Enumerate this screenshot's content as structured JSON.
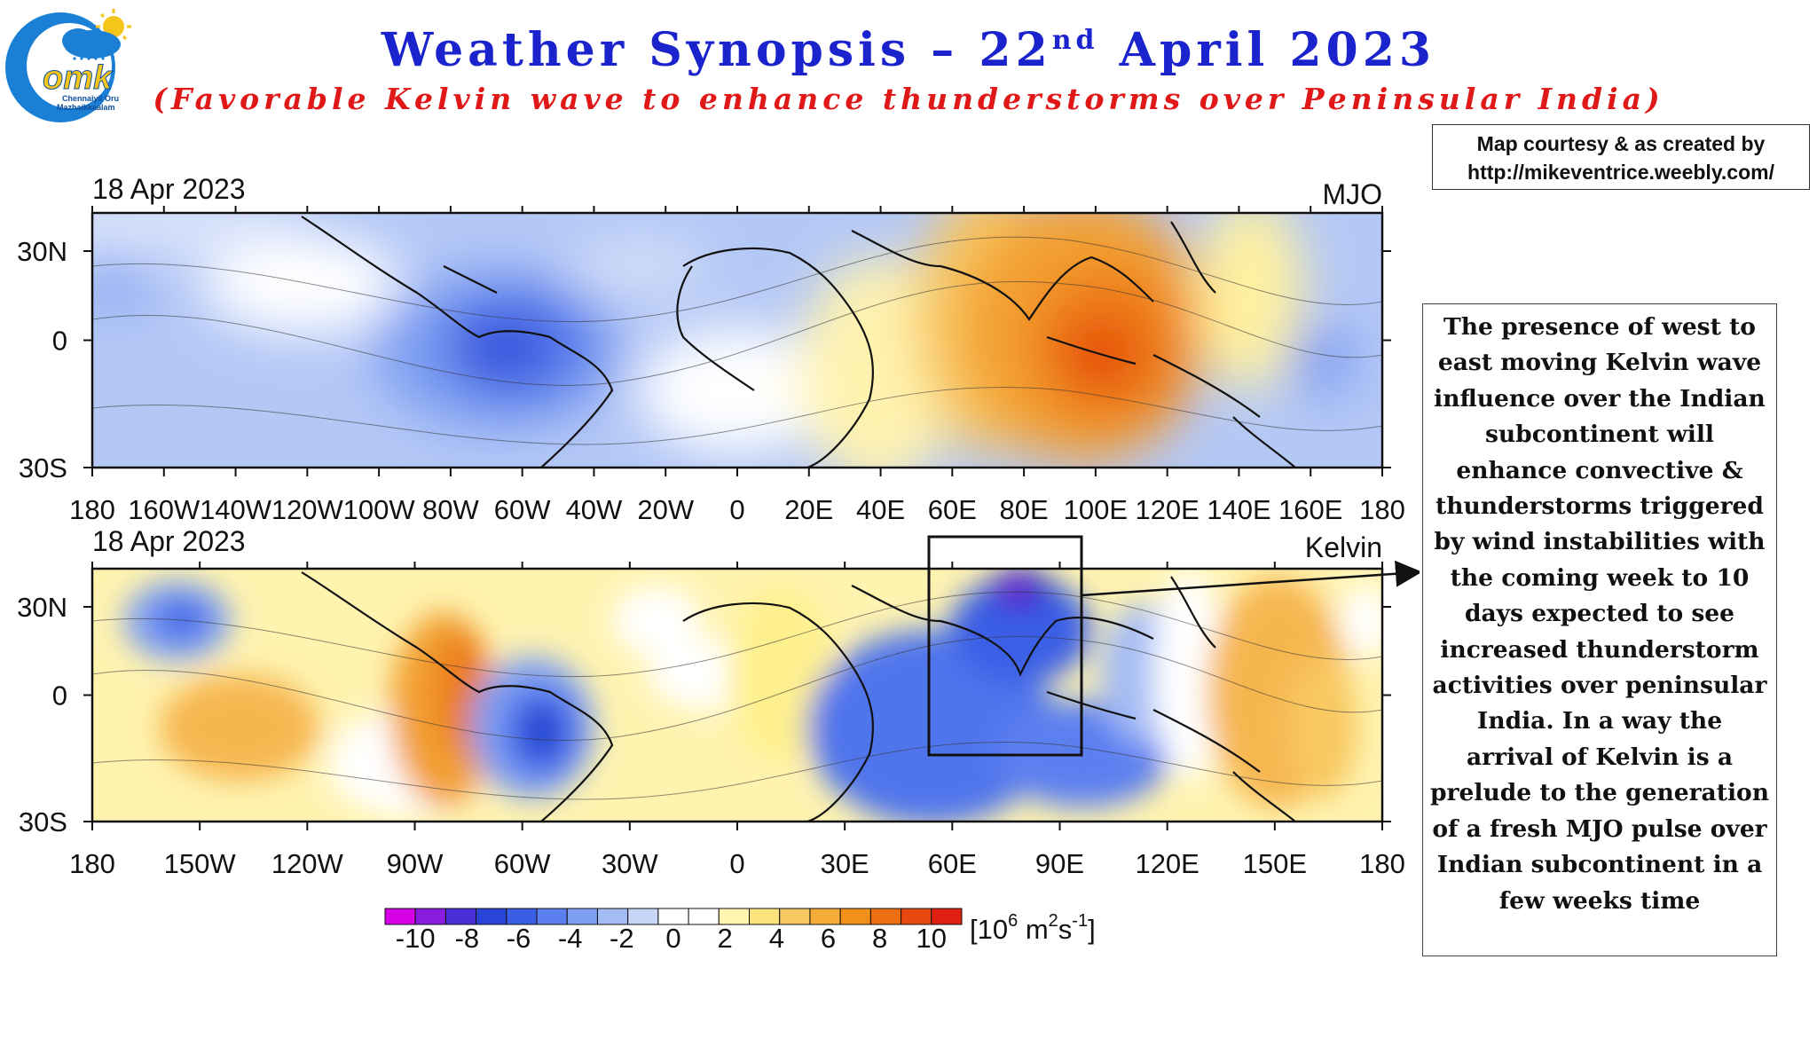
{
  "header": {
    "title_main": "Weather Synopsis – 22",
    "title_sup": "nd",
    "title_rest": " April 2023",
    "subtitle": "(Favorable Kelvin wave to enhance thunderstorms over Peninsular India)"
  },
  "logo": {
    "mark": "omk",
    "line1": "Chennaiyil Oru",
    "line2": "Mazhaikkaalam"
  },
  "courtesy": {
    "line1": "Map courtesy & as created by",
    "line2": "http://mikeventrice.weebly.com/"
  },
  "note": "The presence of west to east moving Kelvin wave influence over the Indian subcontinent will enhance convective & thunderstorms triggered by wind instabilities with the coming week to 10 days expected to see increased thunderstorm activities over peninsular India. In a way the arrival of Kelvin is a prelude to the generation of a fresh MJO pulse over Indian subcontinent in a few weeks time",
  "map_top": {
    "date": "18 Apr 2023",
    "field": "MJO",
    "lat_ticks": [
      "30N",
      "0",
      "30S"
    ],
    "lon_ticks": [
      "180",
      "160W",
      "140W",
      "120W",
      "100W",
      "80W",
      "60W",
      "40W",
      "20W",
      "0",
      "20E",
      "40E",
      "60E",
      "80E",
      "100E",
      "120E",
      "140E",
      "160E",
      "180"
    ]
  },
  "map_bottom": {
    "date": "18 Apr 2023",
    "field": "Kelvin",
    "lat_ticks": [
      "30N",
      "0",
      "30S"
    ],
    "lon_ticks": [
      "180",
      "150W",
      "120W",
      "90W",
      "60W",
      "30W",
      "0",
      "30E",
      "60E",
      "90E",
      "120E",
      "150E",
      "180"
    ],
    "highlight_box": "India region (approx. 54E–97E, 15S–37N)"
  },
  "colorbar": {
    "labels": [
      "-10",
      "-8",
      "-6",
      "-4",
      "-2",
      "0",
      "2",
      "4",
      "6",
      "8",
      "10"
    ],
    "unit_base": "[10",
    "unit_exp": "6",
    "unit_mid": " m",
    "unit_exp2": "2",
    "unit_s": "s",
    "unit_exp3": "-1",
    "unit_end": "]",
    "colors": [
      "#d600e6",
      "#8a1ce0",
      "#4a2ed8",
      "#2a44d8",
      "#3a5ee6",
      "#5c7ff0",
      "#7d9ef2",
      "#a4bcf4",
      "#c8d6f8",
      "#ffffff",
      "#ffffff",
      "#fff4b0",
      "#fbe27a",
      "#f8c860",
      "#f6ac38",
      "#f29018",
      "#ec6e10",
      "#e64810",
      "#e02010"
    ]
  },
  "colors": {
    "title_blue": "#1a23cc",
    "subtitle_red": "#e01818"
  }
}
